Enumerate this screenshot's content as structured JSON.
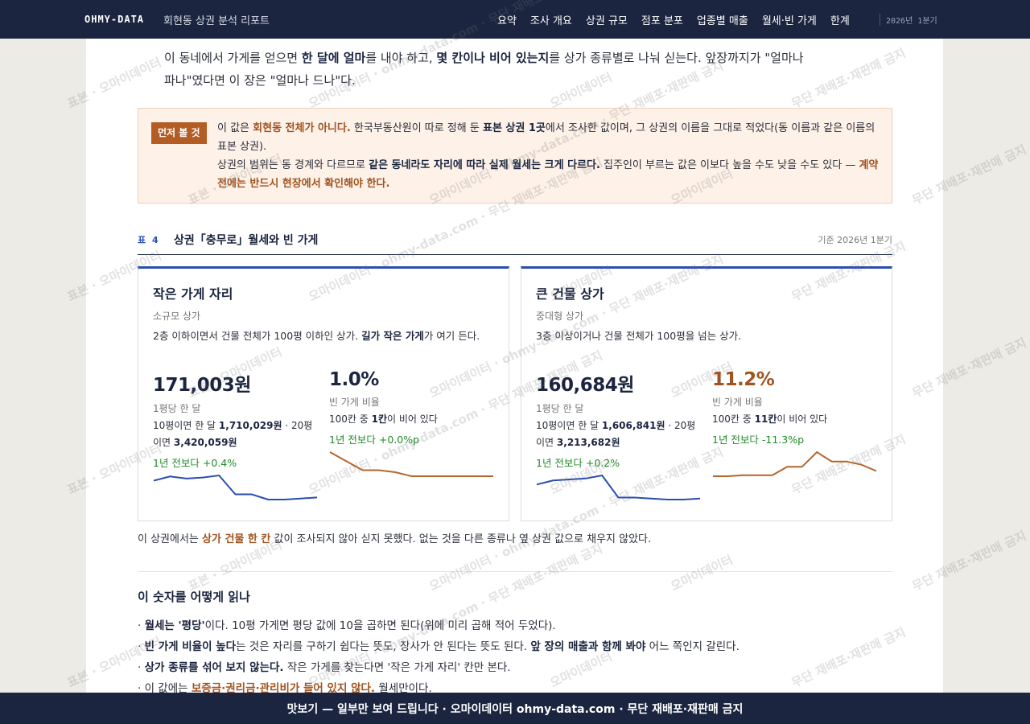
{
  "header": {
    "brand": "OHMY-DATA",
    "subtitle": "회현동 상권 분석 리포트",
    "nav": [
      "요약",
      "조사 개요",
      "상권 규모",
      "점포 분포",
      "업종별 매출",
      "월세·빈 가게",
      "한계"
    ],
    "period": "2026년 1분기"
  },
  "intro": [
    "이 동네에서 가게를 얻으면 ",
    {
      "text": "한 달에 얼마",
      "style": "bold"
    },
    "를 내야 하고, ",
    {
      "text": "몇 칸이나 비어 있는지",
      "style": "bold"
    },
    "를 상가 종류별로 나눠 싣는다. 앞장까지가 \"얼마나 파나\"였다면 이 장은 \"얼마나 드나\"다."
  ],
  "notice": {
    "tag": "먼저 볼 것",
    "lines": [
      [
        "이 값은 ",
        {
          "text": "회현동 전체가 아니다.",
          "style": "accent"
        },
        " 한국부동산원이 따로 정해 둔 ",
        {
          "text": "표본 상권 1곳",
          "style": "bold"
        },
        "에서 조사한 값이며, 그 상권의 이름을 그대로 적었다(동 이름과 같은 이름의 표본 상권)."
      ],
      [
        "상권의 범위는 동 경계와 다르므로 ",
        {
          "text": "같은 동네라도 자리에 따라 실제 월세는 크게 다르다.",
          "style": "bold"
        },
        " 집주인이 부르는 값은 이보다 높을 수도 낮을 수도 있다 — ",
        {
          "text": "계약 전에는 반드시 현장에서 확인해야 한다.",
          "style": "accent"
        }
      ]
    ]
  },
  "table": {
    "label": "표 4",
    "title": "상권「충무로」월세와 빈 가게",
    "basis": "기준 2026년 1분기",
    "cards": [
      {
        "title": "작은 가게 자리",
        "subtitle": "소규모 상가",
        "desc": [
          "2층 이하이면서 건물 전체가 100평 이하인 상가. ",
          {
            "text": "길가 작은 가게",
            "style": "bold"
          },
          "가 여기 든다."
        ],
        "metrics": [
          {
            "value": "171,003원",
            "color": "#1b2540",
            "label": "1평당 한 달",
            "detail": [
              "10평이면 한 달 ",
              {
                "text": "1,710,029원",
                "style": "bold"
              },
              " · 20평이면 ",
              {
                "text": "3,420,059원",
                "style": "bold"
              }
            ],
            "change": "1년 전보다 +0.4%",
            "trend_color": "#2a4db0",
            "trend": [
              175800,
              177000,
              176400,
              176700,
              177300,
              171900,
              171900,
              170400,
              170400,
              170700,
              171003
            ]
          },
          {
            "value": "1.0%",
            "color": "#1b2540",
            "label": "빈 가게 비율",
            "detail": [
              "100칸 중 ",
              {
                "text": "1칸",
                "style": "bold"
              },
              "이 비어 있다"
            ],
            "change": "1년 전보다 +0.0%p",
            "trend_color": "#b5652c",
            "trend": [
              3.4,
              2.5,
              1.6,
              1.6,
              1.4,
              1.0,
              1.0,
              1.0,
              1.0,
              1.0,
              1.0
            ]
          }
        ]
      },
      {
        "title": "큰 건물 상가",
        "subtitle": "중대형 상가",
        "desc": [
          "3층 이상이거나 건물 전체가 100평을 넘는 상가."
        ],
        "metrics": [
          {
            "value": "160,684원",
            "color": "#1b2540",
            "label": "1평당 한 달",
            "detail": [
              "10평이면 한 달 ",
              {
                "text": "1,606,841원",
                "style": "bold"
              },
              " · 20평이면 ",
              {
                "text": "3,213,682원",
                "style": "bold"
              }
            ],
            "change": "1년 전보다 +0.2%",
            "trend_color": "#2a4db0",
            "trend": [
              164900,
              166100,
              166400,
              166700,
              167600,
              161000,
              161000,
              160700,
              160400,
              160400,
              160684
            ]
          },
          {
            "value": "11.2%",
            "color": "#a0531f",
            "label": "빈 가게 비율",
            "detail": [
              "100칸 중 ",
              {
                "text": "11칸",
                "style": "bold"
              },
              "이 비어 있다"
            ],
            "change": "1년 전보다 -11.3%p",
            "trend_color": "#b5652c",
            "trend": [
              8.7,
              8.7,
              9.2,
              9.2,
              9.2,
              13.2,
              13.2,
              20.2,
              15.7,
              15.7,
              14.2,
              11.2
            ]
          }
        ]
      }
    ],
    "note": [
      "이 상권에서는 ",
      {
        "text": "상가 건물 한 칸",
        "style": "accent"
      },
      " 값이 조사되지 않아 싣지 못했다. 없는 것을 다른 종류나 옆 상권 값으로 채우지 않았다."
    ]
  },
  "howto": {
    "title": "이 숫자를 어떻게 읽나",
    "items": [
      [
        {
          "text": "월세는 '평당'",
          "style": "bold"
        },
        "이다. 10평 가게면 평당 값에 10을 곱하면 된다(위에 미리 곱해 적어 두었다)."
      ],
      [
        {
          "text": "빈 가게 비율이 높다",
          "style": "bold"
        },
        "는 것은 자리를 구하기 쉽다는 뜻도, 장사가 안 된다는 뜻도 된다. ",
        {
          "text": "앞 장의 매출과 함께 봐야",
          "style": "bold"
        },
        " 어느 쪽인지 갈린다."
      ],
      [
        {
          "text": "상가 종류를 섞어 보지 않는다.",
          "style": "bold"
        },
        " 작은 가게를 찾는다면 '작은 가게 자리' 칸만 본다."
      ],
      [
        "이 값에는 ",
        {
          "text": "보증금·권리금·관리비가 들어 있지 않다.",
          "style": "accent"
        },
        " 월세만이다."
      ]
    ]
  },
  "footer": "맛보기 — 일부만 보여 드립니다 · 오마이데이터 ohmy-data.com · 무단 재배포·재판매 금지",
  "watermark": [
    "표본 · 오마이데이터",
    "오마이데이터 · ohmy-data.com · 무단 재배포·재판매 금지",
    "오마이데이터",
    "무단 재배포·재판매 금지"
  ]
}
